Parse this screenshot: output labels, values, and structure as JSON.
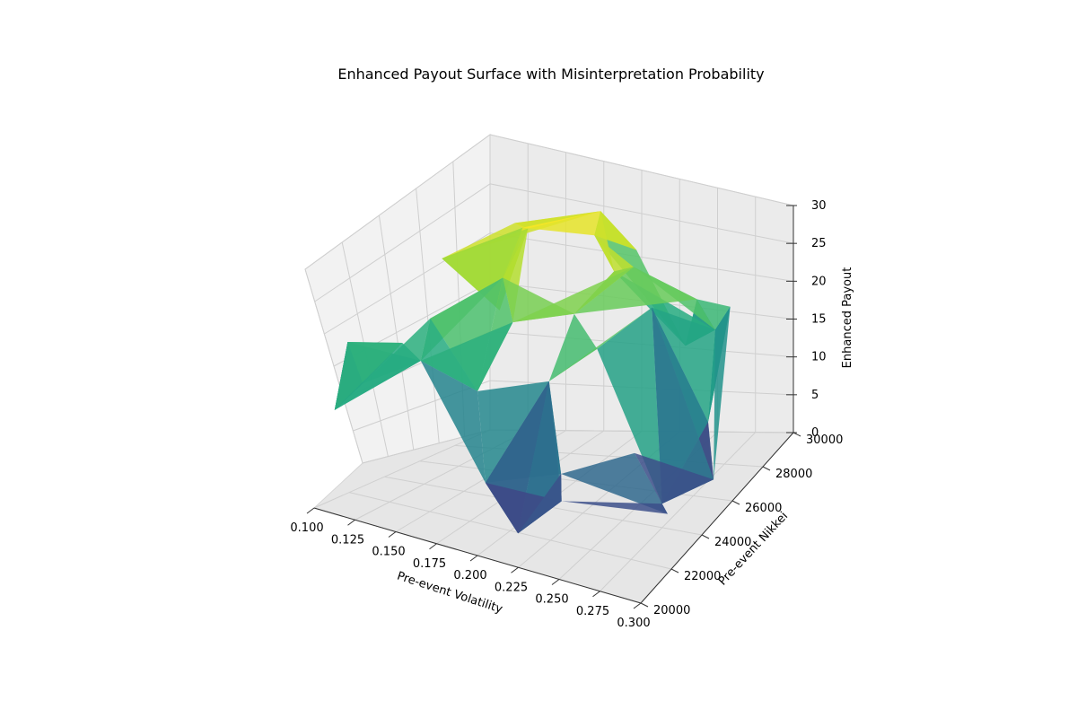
{
  "chart_data": {
    "type": "surface3d",
    "title": "Enhanced Payout Surface with Misinterpretation Probability",
    "xlabel": "Pre-event Volatility",
    "ylabel": "Pre-event Nikkei",
    "zlabel": "Enhanced Payout",
    "xlim": [
      0.1,
      0.3
    ],
    "ylim": [
      20000,
      30000
    ],
    "zlim": [
      0,
      30
    ],
    "xticks": [
      "0.100",
      "0.125",
      "0.150",
      "0.175",
      "0.200",
      "0.225",
      "0.250",
      "0.275",
      "0.300"
    ],
    "yticks": [
      "20000",
      "22000",
      "24000",
      "26000",
      "28000",
      "30000"
    ],
    "zticks": [
      "0",
      "5",
      "10",
      "15",
      "20",
      "25",
      "30"
    ],
    "colormap": "viridis",
    "grid": true,
    "points": [
      {
        "x": 0.1,
        "y": 22000,
        "z": 18.0
      },
      {
        "x": 0.11,
        "y": 26500,
        "z": 24.0
      },
      {
        "x": 0.12,
        "y": 21000,
        "z": 15.0
      },
      {
        "x": 0.13,
        "y": 24000,
        "z": 20.0
      },
      {
        "x": 0.14,
        "y": 28500,
        "z": 26.0
      },
      {
        "x": 0.15,
        "y": 20500,
        "z": 22.0
      },
      {
        "x": 0.16,
        "y": 25500,
        "z": 24.0
      },
      {
        "x": 0.17,
        "y": 23000,
        "z": 14.0
      },
      {
        "x": 0.18,
        "y": 29500,
        "z": 27.0
      },
      {
        "x": 0.19,
        "y": 21500,
        "z": 6.0
      },
      {
        "x": 0.2,
        "y": 26000,
        "z": 20.0
      },
      {
        "x": 0.21,
        "y": 27500,
        "z": 23.0
      },
      {
        "x": 0.22,
        "y": 22500,
        "z": 18.0
      },
      {
        "x": 0.23,
        "y": 24500,
        "z": 19.0
      },
      {
        "x": 0.24,
        "y": 29000,
        "z": 12.0
      },
      {
        "x": 0.25,
        "y": 20200,
        "z": 9.0
      },
      {
        "x": 0.26,
        "y": 25000,
        "z": 24.0
      },
      {
        "x": 0.27,
        "y": 28000,
        "z": 16.0
      },
      {
        "x": 0.28,
        "y": 23500,
        "z": 4.0
      },
      {
        "x": 0.29,
        "y": 27000,
        "z": 21.0
      },
      {
        "x": 0.3,
        "y": 21800,
        "z": 7.0
      },
      {
        "x": 0.12,
        "y": 29800,
        "z": 25.0
      },
      {
        "x": 0.16,
        "y": 27000,
        "z": 28.0
      },
      {
        "x": 0.2,
        "y": 29800,
        "z": 22.0
      },
      {
        "x": 0.25,
        "y": 28800,
        "z": 18.0
      },
      {
        "x": 0.14,
        "y": 22500,
        "z": 17.0
      },
      {
        "x": 0.18,
        "y": 24200,
        "z": 21.0
      },
      {
        "x": 0.22,
        "y": 20500,
        "z": 3.0
      },
      {
        "x": 0.28,
        "y": 26500,
        "z": 8.0
      },
      {
        "x": 0.11,
        "y": 20300,
        "z": 12.0
      },
      {
        "x": 0.3,
        "y": 24800,
        "z": 5.0
      },
      {
        "x": 0.23,
        "y": 26800,
        "z": 25.0
      },
      {
        "x": 0.15,
        "y": 26200,
        "z": 19.0
      },
      {
        "x": 0.27,
        "y": 22800,
        "z": 11.0
      },
      {
        "x": 0.19,
        "y": 28200,
        "z": 26.0
      },
      {
        "x": 0.24,
        "y": 21200,
        "z": 10.0
      }
    ]
  }
}
